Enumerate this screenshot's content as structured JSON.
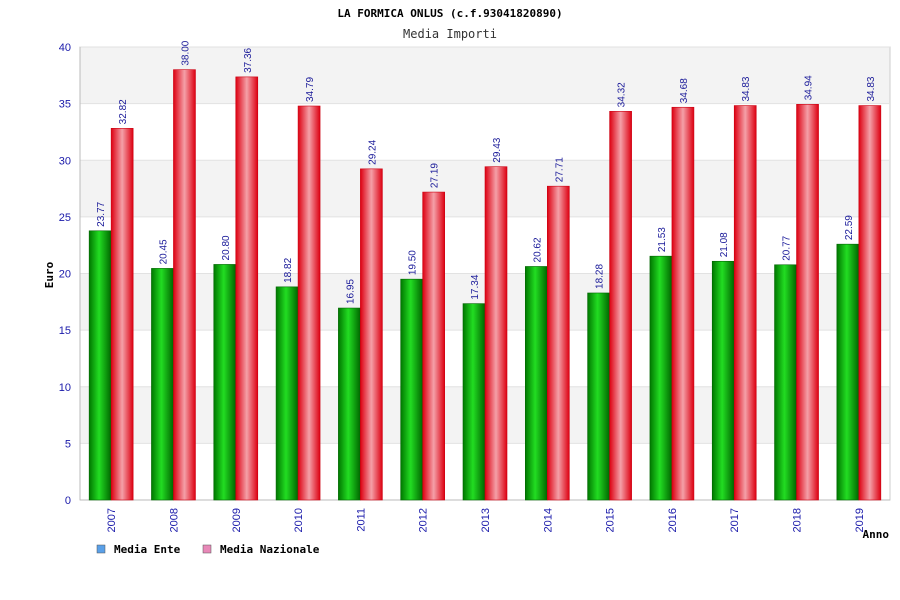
{
  "chart_data": {
    "type": "bar",
    "title": "LA FORMICA ONLUS (c.f.93041820890)",
    "subtitle": "Media Importi",
    "xlabel": "Anno",
    "ylabel": "Euro",
    "ylim": [
      0,
      40
    ],
    "yticks": [
      "0",
      "5",
      "10",
      "15",
      "20",
      "25",
      "30",
      "35",
      "40"
    ],
    "categories": [
      "2007",
      "2008",
      "2009",
      "2010",
      "2011",
      "2012",
      "2013",
      "2014",
      "2015",
      "2016",
      "2017",
      "2018",
      "2019"
    ],
    "series": [
      {
        "name": "Media Ente",
        "color": "#00aa00",
        "values": [
          23.77,
          20.45,
          20.8,
          18.82,
          16.95,
          19.5,
          17.34,
          20.62,
          18.28,
          21.53,
          21.08,
          20.77,
          22.59
        ],
        "labels": [
          "23.77",
          "20.45",
          "20.80",
          "18.82",
          "16.95",
          "19.50",
          "17.34",
          "20.62",
          "18.28",
          "21.53",
          "21.08",
          "20.77",
          "22.59"
        ]
      },
      {
        "name": "Media Nazionale",
        "color": "#ee1122",
        "values": [
          32.82,
          38.0,
          37.36,
          34.79,
          29.24,
          27.19,
          29.43,
          27.71,
          34.32,
          34.68,
          34.83,
          34.94,
          34.83
        ],
        "labels": [
          "32.82",
          "38.00",
          "37.36",
          "34.79",
          "29.24",
          "27.19",
          "29.43",
          "27.71",
          "34.32",
          "34.68",
          "34.83",
          "34.94",
          "34.83"
        ]
      }
    ],
    "legend_colors": [
      "#5aa0e8",
      "#e888b8"
    ],
    "grid": true,
    "legend_position": "bottom-left"
  }
}
